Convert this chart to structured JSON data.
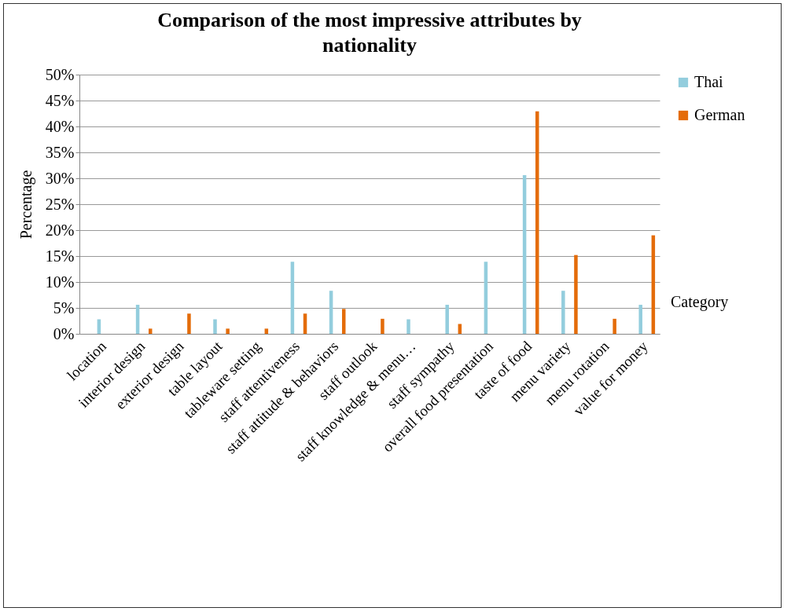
{
  "chart_data": {
    "type": "bar",
    "title": "Comparison of the most impressive attributes by nationality",
    "ylabel": "Percentage",
    "categories": [
      "location",
      "interior design",
      "exterior design",
      "table layout",
      "tableware setting",
      "staff attentiveness",
      "staff attitude & behaviors",
      "staff outlook",
      "staff knowledge & menu…",
      "staff sympathy",
      "overall food presentation",
      "taste of food",
      "menu variety",
      "menu rotation",
      "value for money"
    ],
    "series": [
      {
        "name": "Thai",
        "color": "#93cddd",
        "values": [
          2.8,
          5.6,
          0,
          2.8,
          0,
          13.9,
          8.3,
          0,
          2.8,
          5.6,
          13.9,
          30.6,
          8.3,
          0,
          5.6
        ]
      },
      {
        "name": "German",
        "color": "#e46c0a",
        "values": [
          0,
          1.0,
          3.9,
          1.0,
          1.0,
          3.9,
          4.8,
          2.9,
          0,
          1.9,
          0,
          42.9,
          15.2,
          2.9,
          19.0
        ]
      }
    ],
    "ylim": [
      0,
      50
    ],
    "yticks": [
      {
        "value": 0,
        "label": "0%"
      },
      {
        "value": 5,
        "label": "5%"
      },
      {
        "value": 10,
        "label": "10%"
      },
      {
        "value": 15,
        "label": "15%"
      },
      {
        "value": 20,
        "label": "20%"
      },
      {
        "value": 25,
        "label": "25%"
      },
      {
        "value": 30,
        "label": "30%"
      },
      {
        "value": 35,
        "label": "35%"
      },
      {
        "value": 40,
        "label": "40%"
      },
      {
        "value": 45,
        "label": "45%"
      },
      {
        "value": 50,
        "label": "50%"
      }
    ],
    "grid": "y",
    "legend": "right",
    "annotations": [
      "Category"
    ]
  }
}
